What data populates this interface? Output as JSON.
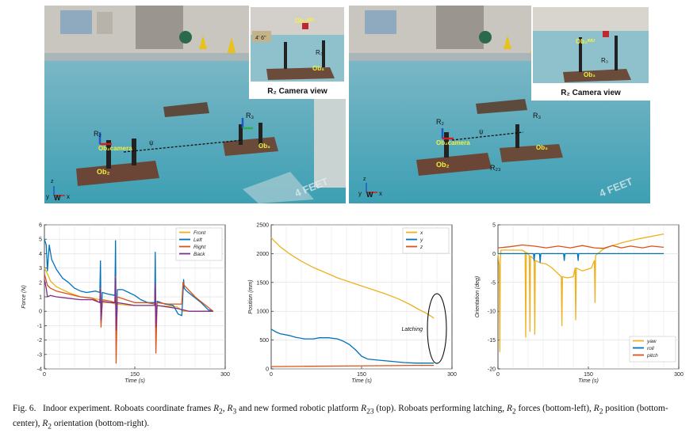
{
  "photos": [
    {
      "inset_title": "R₂ Camera view",
      "axis_labels": {
        "y": "y",
        "w": "W",
        "x": "x",
        "z": "z"
      },
      "labels": {
        "r2": "R₂",
        "r3": "R₃",
        "ob2cam": "Ob₂camera",
        "ob2": "Ob₂",
        "ob3": "Ob₃",
        "psi": "ψ",
        "ob3_inset_top": "Ob₃ᴵᴹᵁ",
        "ob3_inset": "Ob₃",
        "r3_inset": "R₃"
      },
      "sign_depth": "4' 6\"",
      "floor_text": "4 FEET"
    },
    {
      "inset_title": "R₂ Camera view",
      "axis_labels": {
        "y": "y",
        "w": "W",
        "x": "x",
        "z": "z"
      },
      "labels": {
        "r2": "R₂",
        "r3": "R₃",
        "r23": "R₂₃",
        "ob2cam": "Ob₂camera",
        "ob2": "Ob₂",
        "ob3": "Ob₃",
        "psi": "ψ",
        "ob3_inset_top": "Ob₃ᴵᴹᵁ",
        "ob3_inset": "Ob₃",
        "r3_inset": "R₃"
      },
      "floor_text": "4 FEET"
    }
  ],
  "chart_data": [
    {
      "type": "line",
      "xlabel": "Time (s)",
      "ylabel": "Force (N)",
      "xlim": [
        0,
        300
      ],
      "ylim": [
        -4,
        6
      ],
      "xticks": [
        0,
        150,
        300
      ],
      "yticks": [
        -4,
        -3,
        -2,
        -1,
        0,
        1,
        2,
        3,
        4,
        5,
        6
      ],
      "grid": true,
      "legend_position": "top-right",
      "series": [
        {
          "name": "Front",
          "color": "#edb120",
          "points": [
            [
              0,
              3.0
            ],
            [
              5,
              2.6
            ],
            [
              10,
              2.1
            ],
            [
              20,
              1.7
            ],
            [
              40,
              1.3
            ],
            [
              60,
              1.0
            ],
            [
              80,
              0.9
            ],
            [
              92,
              0.8
            ],
            [
              93,
              2.5
            ],
            [
              94,
              -0.8
            ],
            [
              96,
              0.6
            ],
            [
              110,
              0.6
            ],
            [
              117,
              0.5
            ],
            [
              118,
              3.0
            ],
            [
              119,
              -1.2
            ],
            [
              121,
              0.5
            ],
            [
              140,
              0.4
            ],
            [
              170,
              0.4
            ],
            [
              183,
              0.4
            ],
            [
              184,
              2.2
            ],
            [
              185,
              -1.0
            ],
            [
              187,
              0.4
            ],
            [
              220,
              0.3
            ],
            [
              230,
              0.0
            ],
            [
              240,
              0.0
            ],
            [
              280,
              0.0
            ]
          ]
        },
        {
          "name": "Left",
          "color": "#0072bd",
          "points": [
            [
              0,
              5.0
            ],
            [
              3,
              4.6
            ],
            [
              5,
              2.8
            ],
            [
              8,
              4.6
            ],
            [
              12,
              3.6
            ],
            [
              20,
              2.9
            ],
            [
              30,
              2.3
            ],
            [
              40,
              2.0
            ],
            [
              50,
              1.6
            ],
            [
              60,
              1.4
            ],
            [
              70,
              1.3
            ],
            [
              85,
              1.4
            ],
            [
              92,
              1.3
            ],
            [
              93,
              3.5
            ],
            [
              94,
              -0.8
            ],
            [
              96,
              1.3
            ],
            [
              105,
              1.2
            ],
            [
              117,
              1.1
            ],
            [
              118,
              4.9
            ],
            [
              119,
              -1.4
            ],
            [
              121,
              1.5
            ],
            [
              130,
              1.5
            ],
            [
              140,
              1.3
            ],
            [
              150,
              1.1
            ],
            [
              160,
              0.8
            ],
            [
              172,
              0.6
            ],
            [
              183,
              0.6
            ],
            [
              184,
              4.1
            ],
            [
              185,
              -1.2
            ],
            [
              187,
              0.7
            ],
            [
              200,
              0.5
            ],
            [
              214,
              0.4
            ],
            [
              222,
              -0.2
            ],
            [
              228,
              -0.3
            ],
            [
              231,
              2.2
            ],
            [
              232,
              1.6
            ],
            [
              236,
              1.4
            ],
            [
              248,
              1.0
            ],
            [
              260,
              0.6
            ],
            [
              272,
              0.1
            ],
            [
              280,
              0.0
            ]
          ]
        },
        {
          "name": "Right",
          "color": "#d95319",
          "points": [
            [
              0,
              2.6
            ],
            [
              5,
              1.8
            ],
            [
              10,
              1.6
            ],
            [
              20,
              1.4
            ],
            [
              40,
              1.2
            ],
            [
              60,
              1.0
            ],
            [
              80,
              0.9
            ],
            [
              92,
              0.6
            ],
            [
              93,
              1.6
            ],
            [
              94,
              -1.1
            ],
            [
              96,
              0.8
            ],
            [
              110,
              0.7
            ],
            [
              117,
              0.6
            ],
            [
              118,
              2.4
            ],
            [
              119,
              -3.6
            ],
            [
              121,
              1.0
            ],
            [
              135,
              0.8
            ],
            [
              150,
              0.6
            ],
            [
              170,
              0.6
            ],
            [
              183,
              0.5
            ],
            [
              184,
              1.6
            ],
            [
              185,
              -2.9
            ],
            [
              187,
              0.6
            ],
            [
              205,
              0.5
            ],
            [
              220,
              0.5
            ],
            [
              228,
              0.5
            ],
            [
              230,
              2.0
            ],
            [
              232,
              1.8
            ],
            [
              250,
              1.0
            ],
            [
              265,
              0.5
            ],
            [
              280,
              0.0
            ]
          ]
        },
        {
          "name": "Back",
          "color": "#7e2f8e",
          "points": [
            [
              0,
              2.2
            ],
            [
              3,
              1.6
            ],
            [
              5,
              1.0
            ],
            [
              10,
              1.1
            ],
            [
              20,
              1.0
            ],
            [
              40,
              0.9
            ],
            [
              60,
              0.8
            ],
            [
              80,
              0.8
            ],
            [
              92,
              0.6
            ],
            [
              93,
              1.5
            ],
            [
              94,
              -0.6
            ],
            [
              96,
              0.7
            ],
            [
              110,
              0.6
            ],
            [
              117,
              0.6
            ],
            [
              118,
              2.3
            ],
            [
              119,
              -1.3
            ],
            [
              121,
              0.6
            ],
            [
              150,
              0.4
            ],
            [
              183,
              0.4
            ],
            [
              184,
              1.9
            ],
            [
              185,
              -1.1
            ],
            [
              187,
              0.4
            ],
            [
              220,
              0.2
            ],
            [
              240,
              0.0
            ],
            [
              280,
              0.0
            ]
          ]
        }
      ]
    },
    {
      "type": "line",
      "xlabel": "Time (s)",
      "ylabel": "Position (mm)",
      "xlim": [
        0,
        300
      ],
      "ylim": [
        0,
        2500
      ],
      "xticks": [
        0,
        150,
        300
      ],
      "yticks": [
        0,
        500,
        1000,
        1500,
        2000,
        2500
      ],
      "grid": true,
      "legend_position": "top-right",
      "annotation": "Latching",
      "series": [
        {
          "name": "x",
          "color": "#edb120",
          "points": [
            [
              0,
              2280
            ],
            [
              5,
              2220
            ],
            [
              15,
              2120
            ],
            [
              30,
              2000
            ],
            [
              50,
              1870
            ],
            [
              70,
              1760
            ],
            [
              90,
              1670
            ],
            [
              110,
              1580
            ],
            [
              130,
              1510
            ],
            [
              150,
              1440
            ],
            [
              170,
              1370
            ],
            [
              190,
              1300
            ],
            [
              210,
              1220
            ],
            [
              230,
              1120
            ],
            [
              245,
              1030
            ],
            [
              260,
              950
            ],
            [
              270,
              880
            ]
          ]
        },
        {
          "name": "y",
          "color": "#0072bd",
          "points": [
            [
              0,
              690
            ],
            [
              8,
              640
            ],
            [
              15,
              610
            ],
            [
              30,
              580
            ],
            [
              40,
              550
            ],
            [
              55,
              520
            ],
            [
              70,
              520
            ],
            [
              80,
              540
            ],
            [
              95,
              540
            ],
            [
              110,
              520
            ],
            [
              120,
              480
            ],
            [
              130,
              420
            ],
            [
              140,
              330
            ],
            [
              150,
              220
            ],
            [
              160,
              170
            ],
            [
              180,
              150
            ],
            [
              200,
              130
            ],
            [
              220,
              110
            ],
            [
              240,
              100
            ],
            [
              270,
              100
            ]
          ]
        },
        {
          "name": "z",
          "color": "#d95319",
          "points": [
            [
              0,
              40
            ],
            [
              60,
              45
            ],
            [
              120,
              50
            ],
            [
              180,
              55
            ],
            [
              240,
              60
            ],
            [
              270,
              60
            ]
          ]
        }
      ]
    },
    {
      "type": "line",
      "xlabel": "Time (s)",
      "ylabel": "Orientation (deg)",
      "xlim": [
        0,
        300
      ],
      "ylim": [
        -20,
        5
      ],
      "xticks": [
        0,
        150,
        300
      ],
      "yticks": [
        -20,
        -15,
        -10,
        -5,
        0,
        5
      ],
      "grid": true,
      "legend_position": "bottom-right",
      "series": [
        {
          "name": "yaw",
          "color": "#edb120",
          "points": [
            [
              0,
              0.0
            ],
            [
              2,
              -2.0
            ],
            [
              3,
              -17.0
            ],
            [
              4,
              -1.0
            ],
            [
              5,
              0.6
            ],
            [
              20,
              0.6
            ],
            [
              40,
              0.6
            ],
            [
              45,
              0.3
            ],
            [
              46,
              -14.5
            ],
            [
              47,
              0.2
            ],
            [
              52,
              -0.3
            ],
            [
              53,
              -13.5
            ],
            [
              54,
              -0.4
            ],
            [
              60,
              -1.0
            ],
            [
              61,
              -14.0
            ],
            [
              62,
              -1.2
            ],
            [
              70,
              -1.6
            ],
            [
              80,
              -1.8
            ],
            [
              90,
              -2.5
            ],
            [
              100,
              -3.5
            ],
            [
              105,
              -4.0
            ],
            [
              106,
              -12.5
            ],
            [
              107,
              -4.0
            ],
            [
              115,
              -4.2
            ],
            [
              125,
              -4.0
            ],
            [
              128,
              -2.5
            ],
            [
              129,
              -11.5
            ],
            [
              130,
              -2.5
            ],
            [
              140,
              -3.0
            ],
            [
              155,
              -2.5
            ],
            [
              160,
              -1.2
            ],
            [
              161,
              -8.5
            ],
            [
              162,
              -0.3
            ],
            [
              175,
              0.8
            ],
            [
              190,
              1.4
            ],
            [
              210,
              2.0
            ],
            [
              230,
              2.5
            ],
            [
              250,
              2.9
            ],
            [
              275,
              3.4
            ]
          ]
        },
        {
          "name": "roll",
          "color": "#0072bd",
          "points": [
            [
              0,
              0.0
            ],
            [
              59,
              0.0
            ],
            [
              60,
              -1.2
            ],
            [
              61,
              0.0
            ],
            [
              69,
              0.0
            ],
            [
              70,
              -1.5
            ],
            [
              71,
              0.0
            ],
            [
              109,
              0.0
            ],
            [
              110,
              -1.2
            ],
            [
              111,
              0.0
            ],
            [
              132,
              0.0
            ],
            [
              133,
              -1.2
            ],
            [
              134,
              0.0
            ],
            [
              275,
              0.0
            ]
          ]
        },
        {
          "name": "pitch",
          "color": "#d95319",
          "points": [
            [
              0,
              1.0
            ],
            [
              20,
              1.2
            ],
            [
              40,
              1.5
            ],
            [
              60,
              1.3
            ],
            [
              80,
              1.0
            ],
            [
              100,
              1.3
            ],
            [
              120,
              1.0
            ],
            [
              140,
              1.4
            ],
            [
              160,
              1.0
            ],
            [
              175,
              0.9
            ],
            [
              190,
              1.4
            ],
            [
              205,
              1.0
            ],
            [
              220,
              1.3
            ],
            [
              240,
              1.0
            ],
            [
              255,
              1.3
            ],
            [
              275,
              1.1
            ]
          ]
        }
      ]
    }
  ],
  "caption": {
    "label": "Fig. 6.",
    "p1": "Indoor experiment. Roboats coordinate frames ",
    "r2": "R",
    "r2sub": "2",
    "comma1": ", ",
    "r3": "R",
    "r3sub": "3",
    "p2": " and new formed robotic platform ",
    "r23": "R",
    "r23sub": "23",
    "p3": " (top). Roboats performing latching, ",
    "r2b": "R",
    "r2bsub": "2",
    "p4": " forces (bottom-left), ",
    "r2c": "R",
    "r2csub": "2",
    "p5": " position (bottom-center), ",
    "r2d": "R",
    "r2dsub": "2",
    "p6": " orientation (bottom-right)."
  }
}
